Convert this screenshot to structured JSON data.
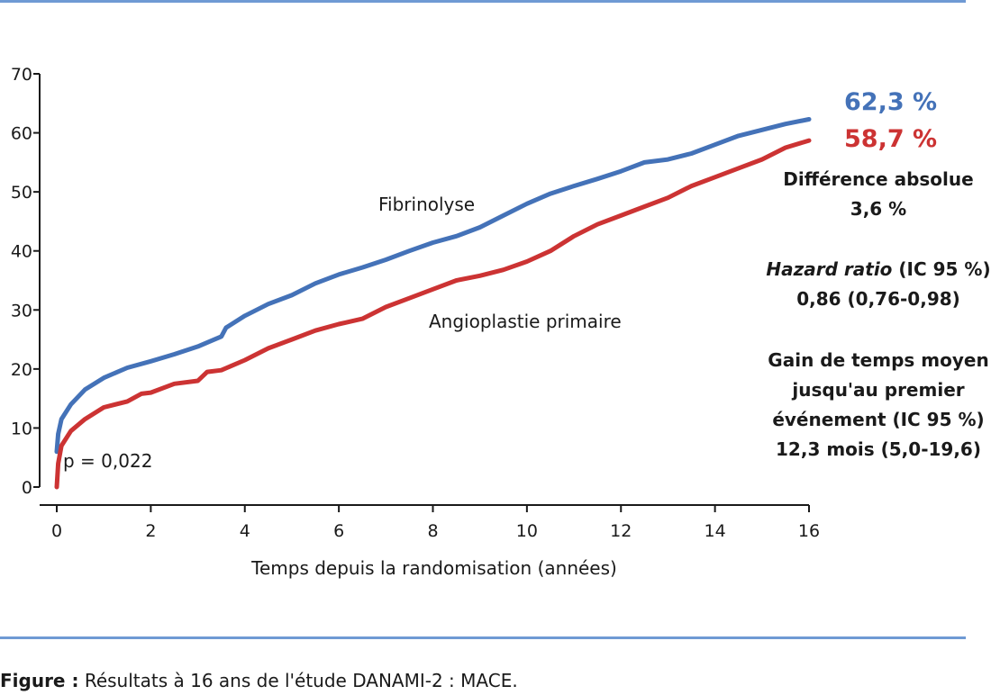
{
  "chart_data": {
    "type": "line",
    "title": "",
    "xlabel": "Temps depuis la randomisation (années)",
    "ylabel": "",
    "xlim": [
      0,
      16
    ],
    "ylim": [
      0,
      70
    ],
    "xticks": [
      0,
      2,
      4,
      6,
      8,
      10,
      12,
      14,
      16
    ],
    "yticks": [
      0,
      10,
      20,
      30,
      40,
      50,
      60,
      70
    ],
    "grid": false,
    "annotations": {
      "p_value": "p = 0,022"
    },
    "series": [
      {
        "name": "Fibrinolyse",
        "color": "#4472b8",
        "end_label": "62,3 %",
        "points": [
          [
            0,
            6
          ],
          [
            0.03,
            9
          ],
          [
            0.1,
            11.5
          ],
          [
            0.3,
            14
          ],
          [
            0.6,
            16.5
          ],
          [
            1,
            18.5
          ],
          [
            1.5,
            20.2
          ],
          [
            2,
            21.3
          ],
          [
            2.5,
            22.5
          ],
          [
            3,
            23.8
          ],
          [
            3.5,
            25.5
          ],
          [
            3.6,
            27
          ],
          [
            4,
            29
          ],
          [
            4.5,
            31
          ],
          [
            5,
            32.5
          ],
          [
            5.5,
            34.5
          ],
          [
            6,
            36
          ],
          [
            6.5,
            37.2
          ],
          [
            7,
            38.5
          ],
          [
            7.5,
            40
          ],
          [
            8,
            41.4
          ],
          [
            8.5,
            42.5
          ],
          [
            9,
            44
          ],
          [
            9.5,
            46
          ],
          [
            10,
            48
          ],
          [
            10.5,
            49.7
          ],
          [
            11,
            51
          ],
          [
            11.5,
            52.2
          ],
          [
            12,
            53.5
          ],
          [
            12.5,
            55
          ],
          [
            13,
            55.5
          ],
          [
            13.5,
            56.5
          ],
          [
            14,
            58
          ],
          [
            14.5,
            59.5
          ],
          [
            15,
            60.5
          ],
          [
            15.5,
            61.5
          ],
          [
            16,
            62.3
          ]
        ]
      },
      {
        "name": "Angioplastie primaire",
        "color": "#cc3333",
        "end_label": "58,7 %",
        "points": [
          [
            0,
            0
          ],
          [
            0.03,
            4
          ],
          [
            0.1,
            7
          ],
          [
            0.3,
            9.5
          ],
          [
            0.6,
            11.5
          ],
          [
            1,
            13.5
          ],
          [
            1.5,
            14.5
          ],
          [
            1.8,
            15.8
          ],
          [
            2,
            16
          ],
          [
            2.5,
            17.5
          ],
          [
            3,
            18
          ],
          [
            3.2,
            19.5
          ],
          [
            3.5,
            19.8
          ],
          [
            4,
            21.5
          ],
          [
            4.5,
            23.5
          ],
          [
            5,
            25
          ],
          [
            5.5,
            26.5
          ],
          [
            6,
            27.6
          ],
          [
            6.5,
            28.5
          ],
          [
            7,
            30.5
          ],
          [
            7.5,
            32
          ],
          [
            8,
            33.5
          ],
          [
            8.5,
            35
          ],
          [
            9,
            35.8
          ],
          [
            9.5,
            36.8
          ],
          [
            10,
            38.2
          ],
          [
            10.5,
            40
          ],
          [
            11,
            42.5
          ],
          [
            11.5,
            44.5
          ],
          [
            12,
            46
          ],
          [
            12.5,
            47.5
          ],
          [
            13,
            49
          ],
          [
            13.5,
            51
          ],
          [
            14,
            52.5
          ],
          [
            14.5,
            54
          ],
          [
            15,
            55.5
          ],
          [
            15.5,
            57.5
          ],
          [
            16,
            58.7
          ]
        ]
      }
    ]
  },
  "side_panel": {
    "difference_label": "Différence absolue",
    "difference_value": "3,6 %",
    "hazard_label_italic": "Hazard ratio",
    "hazard_label_rest": " (IC 95 %)",
    "hazard_value": "0,86 (0,76-0,98)",
    "gain_line1": "Gain de temps moyen",
    "gain_line2": "jusqu'au premier",
    "gain_line3": "événement (IC 95 %)",
    "gain_value": "12,3 mois (5,0-19,6)"
  },
  "caption": {
    "prefix": "Figure :",
    "text": " Résultats à 16 ans de l'étude DANAMI-2 : MACE."
  }
}
